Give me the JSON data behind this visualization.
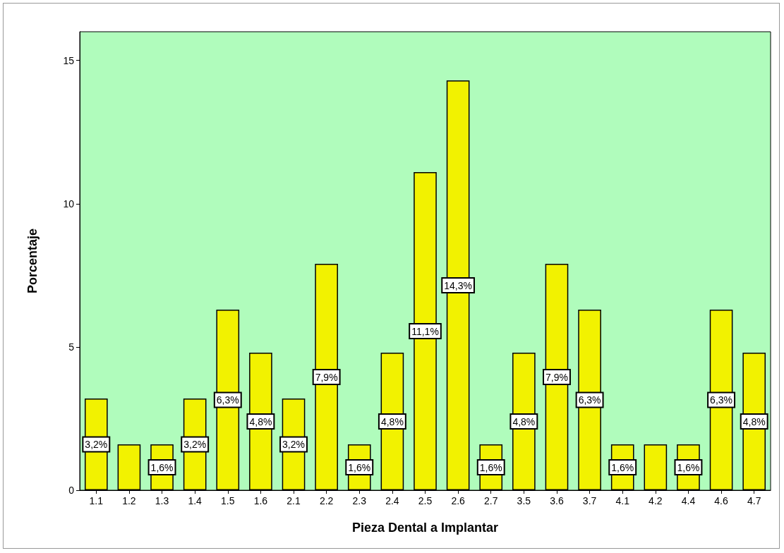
{
  "chart_data": {
    "type": "bar",
    "xlabel": "Pieza Dental a Implantar",
    "ylabel": "Porcentaje",
    "categories": [
      "1.1",
      "1.2",
      "1.3",
      "1.4",
      "1.5",
      "1.6",
      "2.1",
      "2.2",
      "2.3",
      "2.4",
      "2.5",
      "2.6",
      "2.7",
      "3.5",
      "3.6",
      "3.7",
      "4.1",
      "4.2",
      "4.4",
      "4.6",
      "4.7"
    ],
    "values": [
      3.2,
      1.6,
      1.6,
      3.2,
      6.3,
      4.8,
      3.2,
      7.9,
      1.6,
      4.8,
      11.1,
      14.3,
      1.6,
      4.8,
      7.9,
      6.3,
      1.6,
      1.6,
      1.6,
      6.3,
      4.8
    ],
    "value_labels": [
      "3,2%",
      null,
      "1,6%",
      "3,2%",
      "6,3%",
      "4,8%",
      "3,2%",
      "7,9%",
      "1,6%",
      "4,8%",
      "11,1%",
      "14,3%",
      "1,6%",
      "4,8%",
      "7,9%",
      "6,3%",
      "1,6%",
      null,
      "1,6%",
      "6,3%",
      "4,8%"
    ],
    "color": "#f2f200",
    "ylim": [
      0,
      16
    ],
    "yticks": [
      0,
      5,
      10,
      15
    ],
    "grid": false
  }
}
